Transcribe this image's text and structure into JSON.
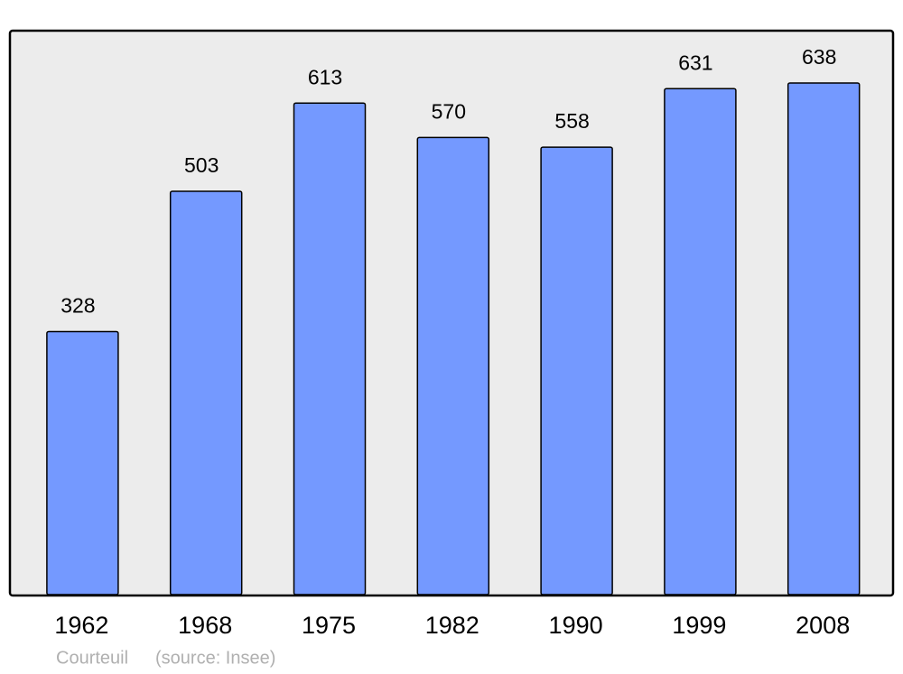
{
  "chart_data": {
    "type": "bar",
    "categories": [
      "1962",
      "1968",
      "1975",
      "1982",
      "1990",
      "1999",
      "2008"
    ],
    "values": [
      328,
      503,
      613,
      570,
      558,
      631,
      638
    ],
    "color": "#7499ff",
    "caption": "Courteuil",
    "source": "(source: Insee)"
  }
}
